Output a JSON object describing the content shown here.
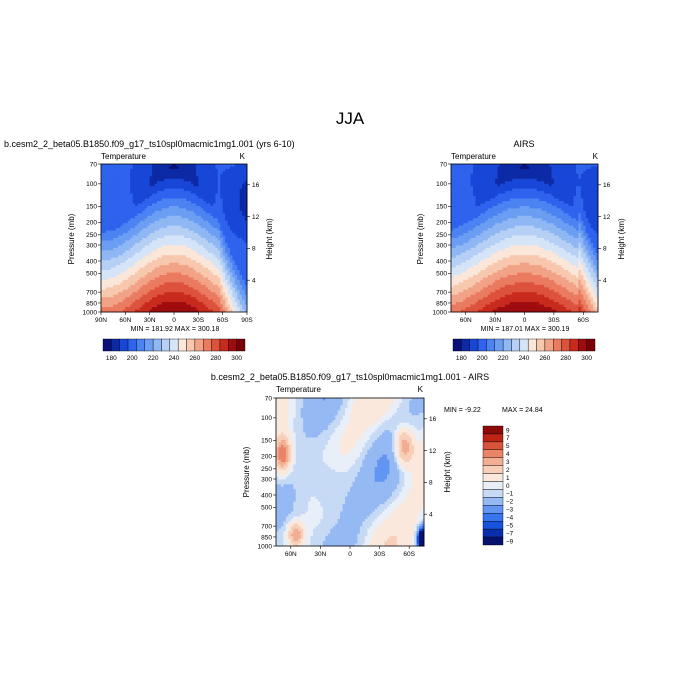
{
  "page_title": "JJA",
  "colors": {
    "model_obs_scale": [
      "#08107a",
      "#0c2aa6",
      "#1846d6",
      "#2f63ee",
      "#4c83f2",
      "#6b9ef3",
      "#8eb7f3",
      "#b6d0f5",
      "#d6e4f7",
      "#fbe6da",
      "#f7c7ae",
      "#f2a286",
      "#ea7a60",
      "#dd523d",
      "#c82a1e",
      "#9f0c10",
      "#7a0008"
    ],
    "diff_scale": [
      "#06126e",
      "#0a2fae",
      "#1753dc",
      "#3775ee",
      "#6395f2",
      "#95b9f3",
      "#c6d9f5",
      "#e8eff8",
      "#fbe8dc",
      "#f7cfb9",
      "#f2ae92",
      "#ea8466",
      "#d9533a",
      "#bd2414",
      "#8d0a08"
    ]
  },
  "chart_data": [
    {
      "type": "heatmap",
      "title": "b.cesm2_2_beta05.B1850.f09_g17_ts10spl0macmic1mg1.001 (yrs 6-10)",
      "left_string": "Temperature",
      "right_string": "K",
      "xlabel": "",
      "ylabel": "Pressure (mb)",
      "ylabel_right": "Height (km)",
      "x_ticks": [
        "90N",
        "60N",
        "30N",
        "0",
        "30S",
        "60S",
        "90S"
      ],
      "y_ticks": [
        "70",
        "100",
        "150",
        "200",
        "250",
        "300",
        "400",
        "500",
        "700",
        "850",
        "1000"
      ],
      "y_right_ticks": [
        "4",
        "8",
        "12",
        "16"
      ],
      "ylim": [
        1000,
        70
      ],
      "xlim": [
        90,
        -90
      ],
      "stats": "MIN = 181.92   MAX = 300.18",
      "colorbar_labels": [
        "180",
        "190",
        "200",
        "210",
        "220",
        "230",
        "240",
        "250",
        "260",
        "270",
        "280",
        "290",
        "300"
      ]
    },
    {
      "type": "heatmap",
      "title": "AIRS",
      "left_string": "Temperature",
      "right_string": "K",
      "xlabel": "",
      "ylabel": "Pressure (mb)",
      "ylabel_right": "Height (km)",
      "x_ticks": [
        "60N",
        "30N",
        "0",
        "30S",
        "60S"
      ],
      "y_ticks": [
        "70",
        "100",
        "150",
        "200",
        "250",
        "300",
        "400",
        "500",
        "700",
        "850",
        "1000"
      ],
      "y_right_ticks": [
        "4",
        "8",
        "12",
        "16"
      ],
      "ylim": [
        1000,
        70
      ],
      "xlim": [
        75,
        -75
      ],
      "stats": "MIN = 187.01   MAX = 300.19",
      "colorbar_labels": [
        "180",
        "190",
        "200",
        "210",
        "220",
        "230",
        "240",
        "250",
        "260",
        "270",
        "280",
        "290",
        "300"
      ]
    },
    {
      "type": "heatmap",
      "title": "b.cesm2_2_beta05.B1850.f09_g17_ts10spl0macmic1mg1.001 - AIRS",
      "left_string": "Temperature",
      "right_string": "K",
      "xlabel": "",
      "ylabel": "Pressure (mb)",
      "ylabel_right": "Height (km)",
      "x_ticks": [
        "60N",
        "30N",
        "0",
        "30S",
        "60S"
      ],
      "y_ticks": [
        "70",
        "100",
        "150",
        "200",
        "250",
        "300",
        "400",
        "500",
        "700",
        "850",
        "1000"
      ],
      "y_right_ticks": [
        "4",
        "8",
        "12",
        "16"
      ],
      "ylim": [
        1000,
        70
      ],
      "xlim": [
        75,
        -75
      ],
      "stats_min": "MIN =  -9.22",
      "stats_max": "MAX =  24.84",
      "colorbar_labels": [
        "9",
        "7",
        "5",
        "4",
        "3",
        "2",
        "1",
        "0",
        "−1",
        "−2",
        "−3",
        "−4",
        "−5",
        "−7",
        "−9"
      ]
    }
  ]
}
